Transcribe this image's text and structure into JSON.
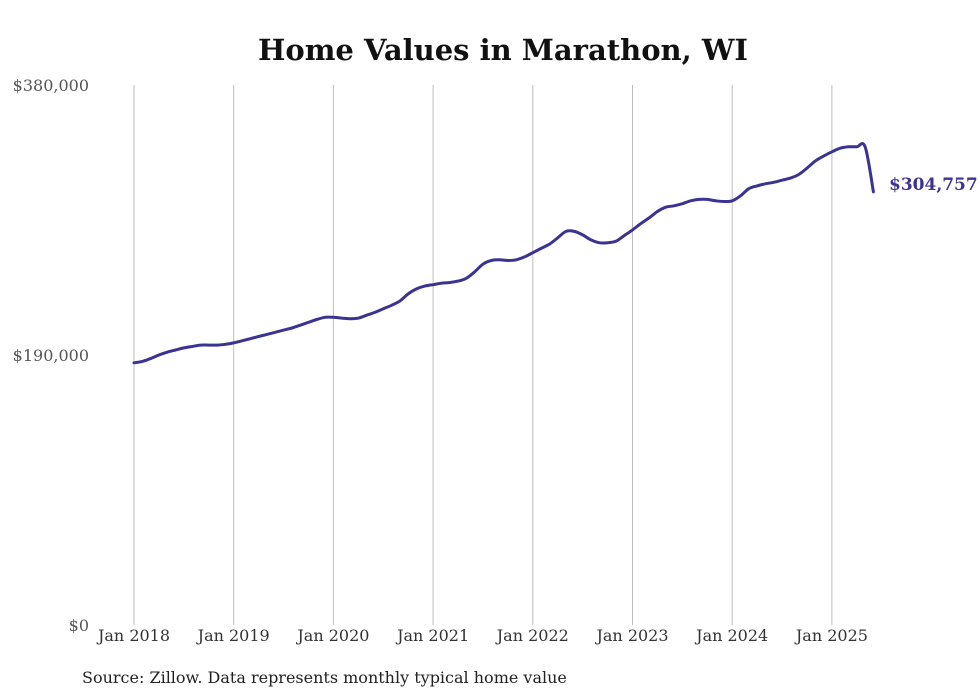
{
  "chart_data": {
    "type": "line",
    "title": "Home Values in Marathon, WI",
    "xlabel": "",
    "ylabel": "",
    "ylim": [
      0,
      380000
    ],
    "y_ticks": [
      {
        "value": 0,
        "label": "$0"
      },
      {
        "value": 190000,
        "label": "$190,000"
      },
      {
        "value": 380000,
        "label": "$380,000"
      }
    ],
    "x_ticks": [
      {
        "value": "2018-01",
        "label": "Jan 2018"
      },
      {
        "value": "2019-01",
        "label": "Jan 2019"
      },
      {
        "value": "2020-01",
        "label": "Jan 2020"
      },
      {
        "value": "2021-01",
        "label": "Jan 2021"
      },
      {
        "value": "2022-01",
        "label": "Jan 2022"
      },
      {
        "value": "2023-01",
        "label": "Jan 2023"
      },
      {
        "value": "2024-01",
        "label": "Jan 2024"
      },
      {
        "value": "2025-01",
        "label": "Jan 2025"
      }
    ],
    "grid": {
      "vertical": true,
      "horizontal": false
    },
    "line_color": "#3b3391",
    "series": [
      {
        "x": [
          "2018-01",
          "2018-02",
          "2018-03",
          "2018-04",
          "2018-05",
          "2018-06",
          "2018-07",
          "2018-08",
          "2018-09",
          "2018-10",
          "2018-11",
          "2018-12",
          "2019-01",
          "2019-02",
          "2019-03",
          "2019-04",
          "2019-05",
          "2019-06",
          "2019-07",
          "2019-08",
          "2019-09",
          "2019-10",
          "2019-11",
          "2019-12",
          "2020-01",
          "2020-02",
          "2020-03",
          "2020-04",
          "2020-05",
          "2020-06",
          "2020-07",
          "2020-08",
          "2020-09",
          "2020-10",
          "2020-11",
          "2020-12",
          "2021-01",
          "2021-02",
          "2021-03",
          "2021-04",
          "2021-05",
          "2021-06",
          "2021-07",
          "2021-08",
          "2021-09",
          "2021-10",
          "2021-11",
          "2021-12",
          "2022-01",
          "2022-02",
          "2022-03",
          "2022-04",
          "2022-05",
          "2022-06",
          "2022-07",
          "2022-08",
          "2022-09",
          "2022-10",
          "2022-11",
          "2022-12",
          "2023-01",
          "2023-02",
          "2023-03",
          "2023-04",
          "2023-05",
          "2023-06",
          "2023-07",
          "2023-08",
          "2023-09",
          "2023-10",
          "2023-11",
          "2023-12",
          "2024-01",
          "2024-02",
          "2024-03",
          "2024-04",
          "2024-05",
          "2024-06",
          "2024-07",
          "2024-08",
          "2024-09",
          "2024-10",
          "2024-11",
          "2024-12",
          "2025-01",
          "2025-02",
          "2025-03",
          "2025-04",
          "2025-05",
          "2025-06"
        ],
        "values": [
          184500,
          185500,
          187500,
          190000,
          192000,
          193500,
          195000,
          196000,
          197000,
          197000,
          197000,
          197500,
          198500,
          200000,
          201500,
          203000,
          204500,
          206000,
          207500,
          209000,
          211000,
          213000,
          215000,
          216500,
          216500,
          216000,
          215500,
          216000,
          218000,
          220000,
          222500,
          225000,
          228000,
          233000,
          236500,
          238500,
          239500,
          240500,
          241000,
          242000,
          244000,
          248500,
          254000,
          256500,
          257000,
          256500,
          257000,
          259000,
          262000,
          265000,
          268000,
          272500,
          277000,
          277000,
          274500,
          271000,
          269000,
          269000,
          270000,
          274000,
          278000,
          282500,
          286500,
          291000,
          294000,
          295000,
          296500,
          298500,
          299500,
          299500,
          298500,
          298000,
          298500,
          302000,
          307000,
          309000,
          310500,
          311500,
          313000,
          314500,
          317000,
          321500,
          326500,
          330000,
          333000,
          335500,
          336500,
          336500,
          336500,
          304757
        ],
        "end_label": "$304,757"
      }
    ]
  },
  "source_note": "Source: Zillow. Data represents monthly typical home value"
}
